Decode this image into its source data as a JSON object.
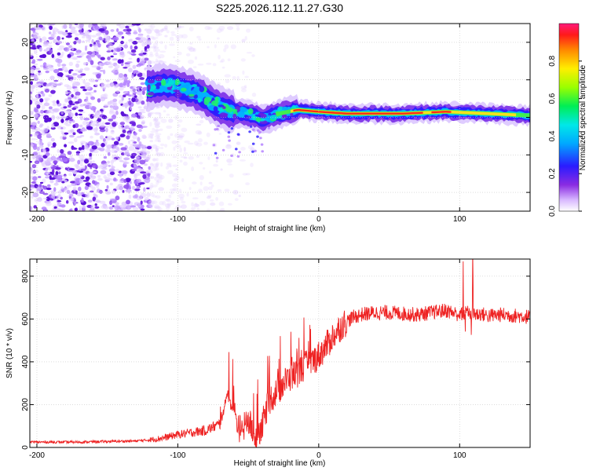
{
  "figure_title": "S225.2026.112.11.27.G30",
  "colors": {
    "line": "#ee2222",
    "grid": "#c8c8c8",
    "axis": "#000000"
  },
  "chart_data": [
    {
      "type": "heatmap",
      "title": "S225.2026.112.11.27.G30",
      "xlabel": "Height of straight line (km)",
      "ylabel": "Frequency (Hz)",
      "xlim": [
        -205,
        150
      ],
      "ylim": [
        -25,
        25
      ],
      "x_ticks": [
        -200,
        -100,
        0,
        100
      ],
      "x_tick_labels": [
        "-200",
        "-100",
        "0",
        "100"
      ],
      "y_ticks": [
        -20,
        -10,
        0,
        10,
        20
      ],
      "y_tick_labels": [
        "-20",
        "-10",
        "0",
        "10",
        "20"
      ],
      "colorbar": {
        "label": "Normalized spectral amplitude",
        "range": [
          0,
          1
        ],
        "ticks": [
          0,
          0.2,
          0.4,
          0.6,
          0.8
        ],
        "tick_labels": [
          "0.0",
          "0.2",
          "0.4",
          "0.6",
          "0.8"
        ]
      },
      "ridge": [
        {
          "x": -122,
          "f": 8.0
        },
        {
          "x": -110,
          "f": 8.5
        },
        {
          "x": -100,
          "f": 8.0
        },
        {
          "x": -90,
          "f": 7.0
        },
        {
          "x": -82,
          "f": 5.5
        },
        {
          "x": -72,
          "f": 3.0
        },
        {
          "x": -62,
          "f": 1.5
        },
        {
          "x": -52,
          "f": 1.0
        },
        {
          "x": -40,
          "f": -0.5
        },
        {
          "x": -28,
          "f": 1.0
        },
        {
          "x": -15,
          "f": 2.0
        },
        {
          "x": 0,
          "f": 1.5
        },
        {
          "x": 20,
          "f": 1.0
        },
        {
          "x": 60,
          "f": 1.0
        },
        {
          "x": 90,
          "f": 1.5
        },
        {
          "x": 120,
          "f": 1.0
        },
        {
          "x": 150,
          "f": 0.5
        }
      ]
    },
    {
      "type": "line",
      "title": "",
      "xlabel": "Height of straight line (km)",
      "ylabel": "SNR (10 * v/v)",
      "xlim": [
        -205,
        150
      ],
      "ylim": [
        0,
        880
      ],
      "x_ticks": [
        -200,
        -100,
        0,
        100
      ],
      "x_tick_labels": [
        "-200",
        "-100",
        "0",
        "100"
      ],
      "y_ticks": [
        0,
        200,
        400,
        600,
        800
      ],
      "y_tick_labels": [
        "0",
        "200",
        "400",
        "600",
        "800"
      ],
      "series": [
        {
          "name": "SNR",
          "x": [
            -205,
            -190,
            -170,
            -150,
            -130,
            -120,
            -110,
            -100,
            -90,
            -80,
            -70,
            -65,
            -60,
            -55,
            -50,
            -45,
            -40,
            -35,
            -30,
            -25,
            -20,
            -15,
            -10,
            -5,
            0,
            5,
            10,
            15,
            20,
            25,
            30,
            35,
            40,
            50,
            60,
            70,
            80,
            90,
            100,
            105,
            110,
            115,
            120,
            130,
            140,
            150
          ],
          "y": [
            25,
            25,
            25,
            28,
            30,
            35,
            45,
            60,
            70,
            80,
            110,
            250,
            160,
            70,
            130,
            40,
            110,
            220,
            260,
            300,
            330,
            350,
            380,
            400,
            430,
            470,
            520,
            560,
            590,
            610,
            620,
            625,
            630,
            630,
            625,
            620,
            630,
            640,
            620,
            630,
            620,
            625,
            615,
            620,
            615,
            610
          ]
        }
      ]
    }
  ]
}
